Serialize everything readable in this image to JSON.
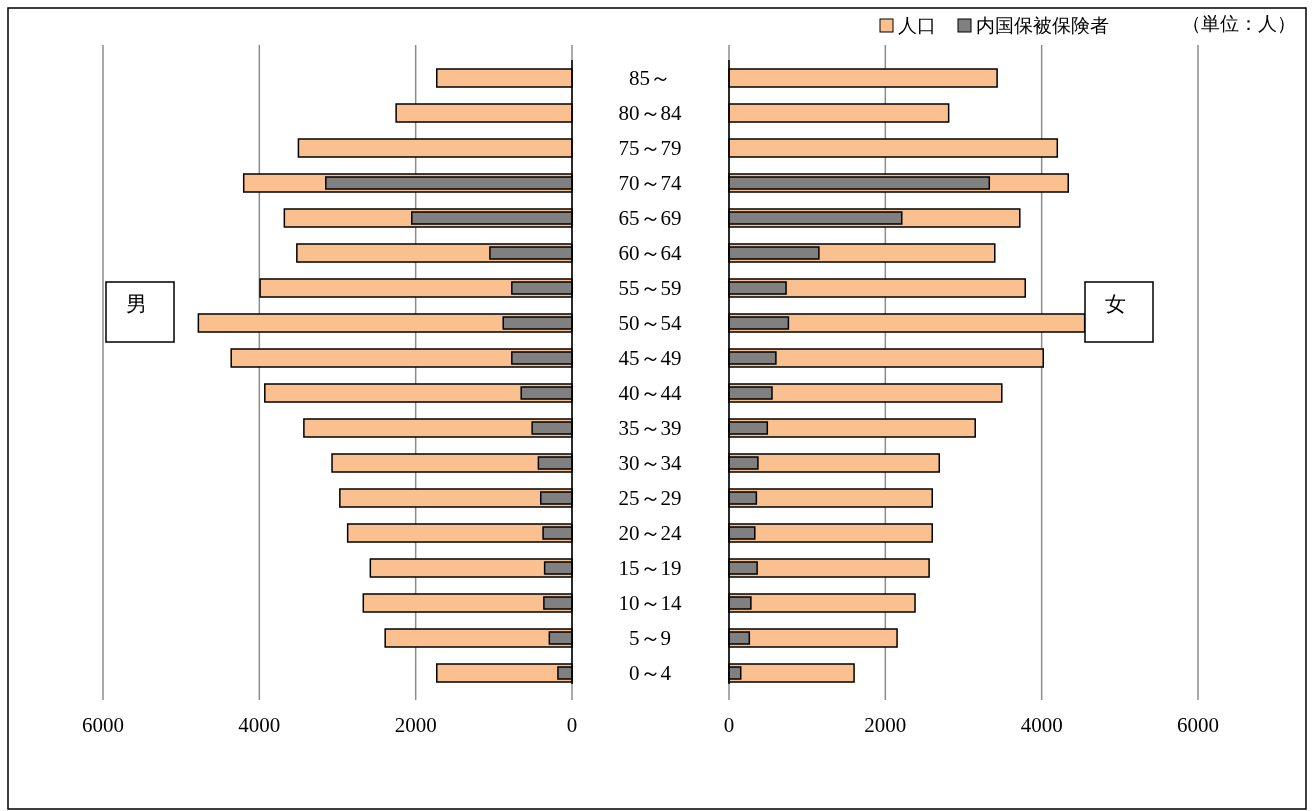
{
  "chart_data": [
    {
      "type": "bar",
      "orientation": "horizontal",
      "categories": [
        "85～",
        "80～84",
        "75～79",
        "70～74",
        "65～69",
        "60～64",
        "55～59",
        "50～54",
        "45～49",
        "40～44",
        "35～39",
        "30～34",
        "25～29",
        "20～24",
        "15～19",
        "10～14",
        "5～9",
        "0～4"
      ],
      "xlim": [
        6000,
        0
      ],
      "xticks": [
        6000,
        4000,
        2000,
        0
      ],
      "grid": "x",
      "annotations": [
        "男"
      ],
      "series": [
        {
          "color": "#fac090",
          "values": [
            1730,
            2250,
            3500,
            4200,
            3680,
            3520,
            3990,
            4780,
            4360,
            3930,
            3430,
            3070,
            2970,
            2870,
            2580,
            2670,
            2390,
            1730
          ]
        },
        {
          "color": "#808080",
          "values": [
            null,
            null,
            null,
            3150,
            2050,
            1050,
            770,
            880,
            770,
            650,
            510,
            430,
            400,
            370,
            350,
            360,
            290,
            180
          ]
        }
      ]
    },
    {
      "type": "bar",
      "orientation": "horizontal",
      "categories": [
        null,
        null,
        null,
        null,
        null,
        null,
        null,
        null,
        null,
        null,
        null,
        null,
        null,
        null,
        null,
        null,
        null,
        null
      ],
      "xlim": [
        0,
        6000
      ],
      "xticks": [
        0,
        2000,
        4000,
        6000
      ],
      "grid": "x",
      "legend": "top right",
      "annotations": [
        "女",
        "（単位：人）"
      ],
      "series": [
        {
          "name": "人口",
          "color": "#fac090",
          "values": [
            3430,
            2810,
            4200,
            4340,
            3720,
            3400,
            3790,
            4550,
            4020,
            3490,
            3150,
            2690,
            2600,
            2600,
            2560,
            2380,
            2150,
            1600
          ]
        },
        {
          "name": "内国保被保険者",
          "color": "#808080",
          "values": [
            null,
            null,
            null,
            3330,
            2210,
            1150,
            730,
            760,
            600,
            550,
            490,
            370,
            350,
            330,
            360,
            280,
            260,
            150
          ]
        }
      ]
    }
  ]
}
